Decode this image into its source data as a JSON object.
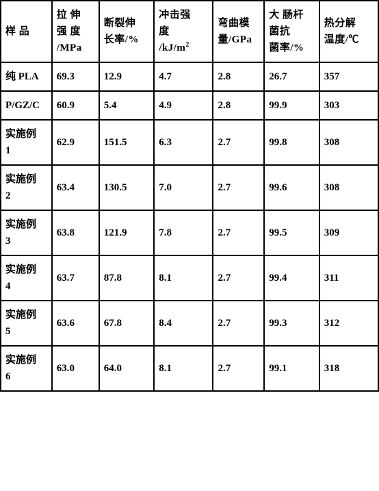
{
  "table": {
    "type": "table",
    "background_color": "#ffffff",
    "border_color": "#000000",
    "border_width": 2,
    "font_weight": "bold",
    "font_size": 15,
    "text_color": "#000000",
    "columns": [
      {
        "key": "sample",
        "label": "样 品",
        "width_pct": 13
      },
      {
        "key": "tensile_strength",
        "label": "拉 伸强 度/MPa",
        "width_pct": 12
      },
      {
        "key": "elongation",
        "label": "断裂伸长率/%",
        "width_pct": 14
      },
      {
        "key": "impact_strength",
        "label": "冲击强度/kJ/m²",
        "width_pct": 15
      },
      {
        "key": "flexural_modulus",
        "label": "弯曲模量/GPa",
        "width_pct": 13
      },
      {
        "key": "antibacterial_rate",
        "label": "大 肠杆菌抗菌率/%",
        "width_pct": 14
      },
      {
        "key": "decomposition_temp",
        "label": "热分解温度/℃",
        "width_pct": 15
      }
    ],
    "header_labels": {
      "sample": "样 品",
      "tensile_strength_l1": "拉 伸",
      "tensile_strength_l2": "强 度",
      "tensile_strength_l3": "/MPa",
      "elongation_l1": "断裂伸",
      "elongation_l2": "长率/%",
      "impact_strength_l1": "冲击强",
      "impact_strength_l2": "度",
      "impact_strength_l3": "/kJ/m",
      "impact_strength_sup": "2",
      "flexural_modulus_l1": "弯曲模",
      "flexural_modulus_l2": "量/GPa",
      "antibacterial_l1": "大 肠杆",
      "antibacterial_l2": "菌抗",
      "antibacterial_l3": "菌率/%",
      "decomposition_l1": "热分解",
      "decomposition_l2": "温度/℃"
    },
    "rows": [
      {
        "sample": "纯 PLA",
        "tensile_strength": "69.3",
        "elongation": "12.9",
        "impact_strength": "4.7",
        "flexural_modulus": "2.8",
        "antibacterial_rate": "26.7",
        "decomposition_temp": "357"
      },
      {
        "sample": "P/GZ/C",
        "tensile_strength": "60.9",
        "elongation": "5.4",
        "impact_strength": "4.9",
        "flexural_modulus": "2.8",
        "antibacterial_rate": "99.9",
        "decomposition_temp": "303"
      },
      {
        "sample": "实施例1",
        "tensile_strength": "62.9",
        "elongation": "151.5",
        "impact_strength": "6.3",
        "flexural_modulus": "2.7",
        "antibacterial_rate": "99.8",
        "decomposition_temp": "308"
      },
      {
        "sample": "实施例2",
        "tensile_strength": "63.4",
        "elongation": "130.5",
        "impact_strength": "7.0",
        "flexural_modulus": "2.7",
        "antibacterial_rate": "99.6",
        "decomposition_temp": "308"
      },
      {
        "sample": "实施例3",
        "tensile_strength": "63.8",
        "elongation": "121.9",
        "impact_strength": "7.8",
        "flexural_modulus": "2.7",
        "antibacterial_rate": "99.5",
        "decomposition_temp": "309"
      },
      {
        "sample": "实施例4",
        "tensile_strength": "63.7",
        "elongation": "87.8",
        "impact_strength": "8.1",
        "flexural_modulus": "2.7",
        "antibacterial_rate": "99.4",
        "decomposition_temp": "311"
      },
      {
        "sample": "实施例5",
        "tensile_strength": "63.6",
        "elongation": "67.8",
        "impact_strength": "8.4",
        "flexural_modulus": "2.7",
        "antibacterial_rate": "99.3",
        "decomposition_temp": "312"
      },
      {
        "sample": "实施例6",
        "tensile_strength": "63.0",
        "elongation": "64.0",
        "impact_strength": "8.1",
        "flexural_modulus": "2.7",
        "antibacterial_rate": "99.1",
        "decomposition_temp": "318"
      }
    ],
    "row_sample_split": [
      {
        "l1": "纯 PLA",
        "l2": ""
      },
      {
        "l1": "P/GZ/C",
        "l2": ""
      },
      {
        "l1": "实施例",
        "l2": "1"
      },
      {
        "l1": "实施例",
        "l2": "2"
      },
      {
        "l1": "实施例",
        "l2": "3"
      },
      {
        "l1": "实施例",
        "l2": "4"
      },
      {
        "l1": "实施例",
        "l2": "5"
      },
      {
        "l1": "实施例",
        "l2": "6"
      }
    ]
  }
}
